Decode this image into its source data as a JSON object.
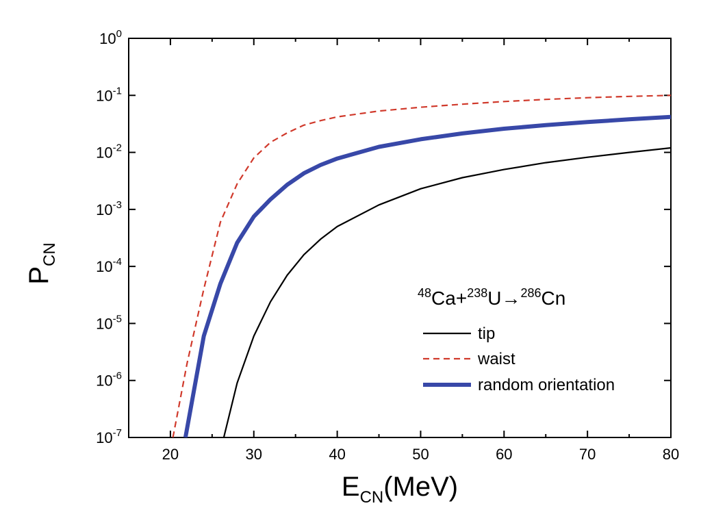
{
  "chart_data": {
    "type": "line",
    "title": "",
    "xlabel": {
      "main": "E",
      "sub": "CN",
      "unit": "(MeV)"
    },
    "ylabel": {
      "main": "P",
      "sub": "CN"
    },
    "xlim": [
      15,
      80
    ],
    "ylim": [
      1e-07,
      1
    ],
    "yscale": "log",
    "grid": false,
    "legend_position": "bottom-right",
    "x_ticks": [
      20,
      30,
      40,
      50,
      60,
      70,
      80
    ],
    "x_tick_labels": [
      "20",
      "30",
      "40",
      "50",
      "60",
      "70",
      "80"
    ],
    "y_tick_exponents": [
      "0",
      "-1",
      "-2",
      "-3",
      "-4",
      "-5",
      "-6",
      "-7"
    ],
    "y_tick_base": "10",
    "annotation": {
      "mass1": "48",
      "el1": "Ca",
      "plus": "+",
      "mass2": "238",
      "el2": "U",
      "arrow": "→",
      "mass3": "286",
      "el3": "Cn"
    },
    "series": [
      {
        "name": "tip",
        "color": "#000000",
        "dash": "solid",
        "x": [
          26.4,
          28,
          30,
          32,
          34,
          36,
          38,
          40,
          45,
          50,
          55,
          60,
          65,
          70,
          75,
          80
        ],
        "y": [
          1e-07,
          9e-07,
          6e-06,
          2.4e-05,
          7e-05,
          0.00016,
          0.0003,
          0.0005,
          0.0012,
          0.0023,
          0.0036,
          0.005,
          0.0066,
          0.0082,
          0.01,
          0.012
        ]
      },
      {
        "name": "waist",
        "color": "#d0392b",
        "dash": "dashed",
        "x": [
          20.3,
          22,
          24,
          26,
          28,
          30,
          32,
          34,
          36,
          38,
          40,
          45,
          50,
          55,
          60,
          65,
          70,
          75,
          80
        ],
        "y": [
          1e-07,
          2e-06,
          4e-05,
          0.0006,
          0.0028,
          0.008,
          0.015,
          0.022,
          0.03,
          0.036,
          0.042,
          0.053,
          0.062,
          0.07,
          0.078,
          0.085,
          0.091,
          0.096,
          0.1
        ]
      },
      {
        "name": "random orientation",
        "color": "#3848a8",
        "dash": "thick",
        "x": [
          21.8,
          24,
          26,
          28,
          30,
          32,
          34,
          36,
          38,
          40,
          45,
          50,
          55,
          60,
          65,
          70,
          75,
          80
        ],
        "y": [
          1e-07,
          6e-06,
          5e-05,
          0.00026,
          0.00075,
          0.0015,
          0.0027,
          0.0043,
          0.006,
          0.0078,
          0.0125,
          0.017,
          0.0215,
          0.026,
          0.03,
          0.034,
          0.038,
          0.042
        ]
      }
    ]
  }
}
